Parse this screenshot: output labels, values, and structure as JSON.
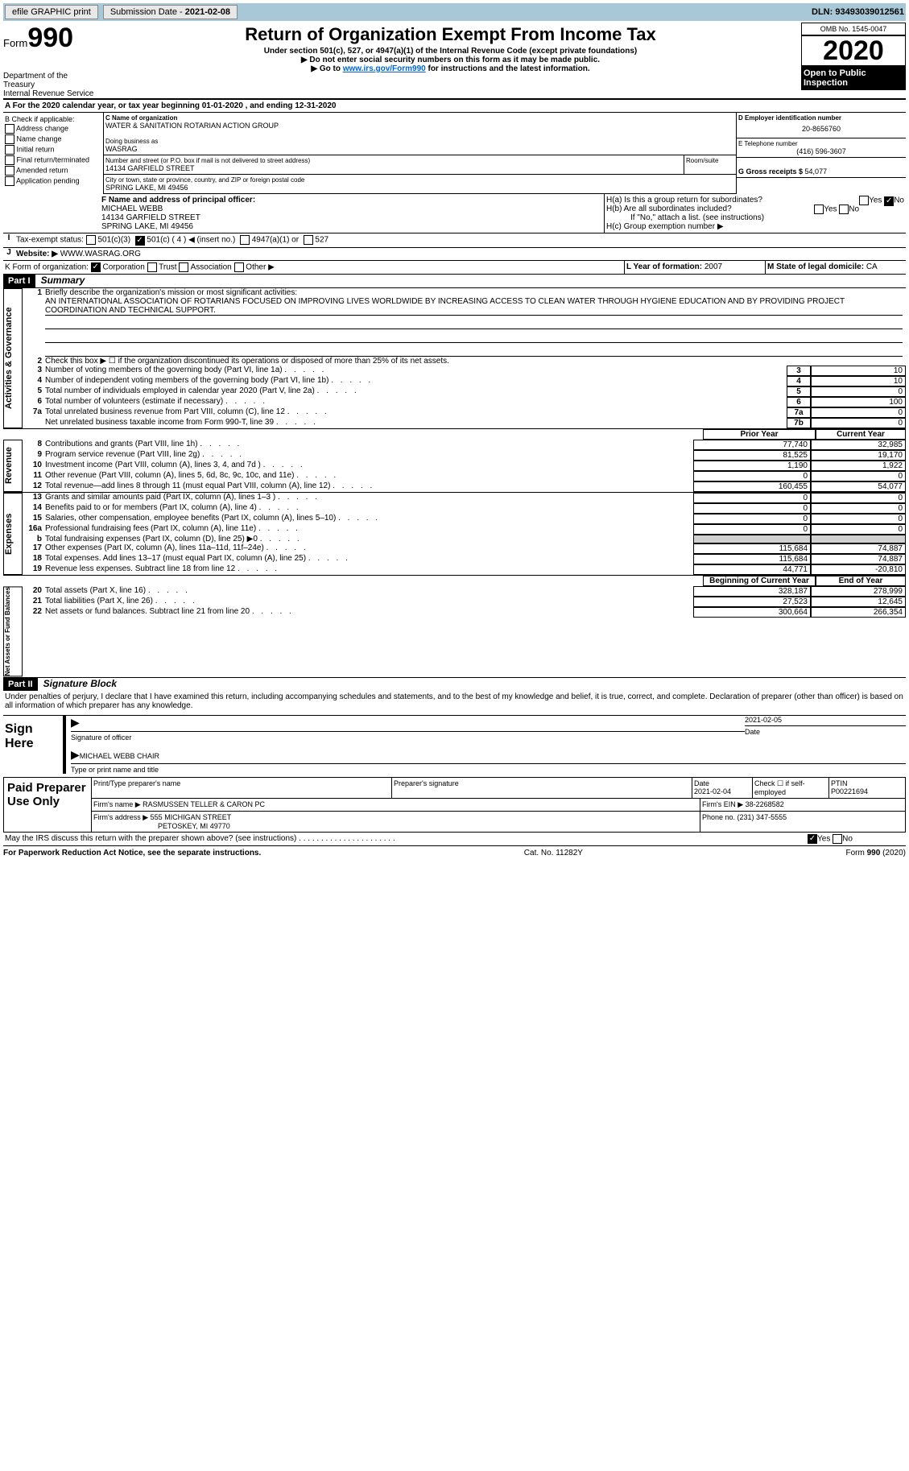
{
  "topbar": {
    "efile": "efile GRAPHIC print",
    "sub_label": "Submission Date - ",
    "sub_date": "2021-02-08",
    "dln_label": "DLN: ",
    "dln": "93493039012561"
  },
  "header": {
    "form": "Form",
    "num": "990",
    "dept": "Department of the Treasury\nInternal Revenue Service",
    "title": "Return of Organization Exempt From Income Tax",
    "sub1": "Under section 501(c), 527, or 4947(a)(1) of the Internal Revenue Code (except private foundations)",
    "sub2": "▶ Do not enter social security numbers on this form as it may be made public.",
    "sub3_a": "▶ Go to ",
    "sub3_link": "www.irs.gov/Form990",
    "sub3_b": " for instructions and the latest information.",
    "omb": "OMB No. 1545-0047",
    "year": "2020",
    "pub": "Open to Public Inspection"
  },
  "periodA": "A For the 2020 calendar year, or tax year beginning 01-01-2020    , and ending 12-31-2020",
  "B": {
    "hdr": "B Check if applicable:",
    "o1": "Address change",
    "o2": "Name change",
    "o3": "Initial return",
    "o4": "Final return/terminated",
    "o5": "Amended return",
    "o6": "Application pending"
  },
  "C": {
    "lbl": "C Name of organization",
    "name": "WATER & SANITATION ROTARIAN ACTION GROUP",
    "dba_lbl": "Doing business as",
    "dba": "WASRAG",
    "addr_lbl": "Number and street (or P.O. box if mail is not delivered to street address)",
    "room_lbl": "Room/suite",
    "addr": "14134 GARFIELD STREET",
    "city_lbl": "City or town, state or province, country, and ZIP or foreign postal code",
    "city": "SPRING LAKE, MI  49456"
  },
  "D": {
    "lbl": "D Employer identification number",
    "ein": "20-8656760"
  },
  "E": {
    "lbl": "E Telephone number",
    "tel": "(416) 596-3607"
  },
  "G": {
    "lbl": "G Gross receipts $ ",
    "val": "54,077"
  },
  "F": {
    "lbl": "F Name and address of principal officer:",
    "name": "MICHAEL WEBB",
    "addr1": "14134 GARFIELD STREET",
    "addr2": "SPRING LAKE, MI  49456"
  },
  "H": {
    "a": "H(a)  Is this a group return for subordinates?",
    "b": "H(b)  Are all subordinates included?",
    "note": "If \"No,\" attach a list. (see instructions)",
    "c": "H(c)  Group exemption number ▶",
    "yes": "Yes",
    "no": "No"
  },
  "I": {
    "lbl": "Tax-exempt status:",
    "o1": "501(c)(3)",
    "o2a": "501(c) ( 4 ) ◀ (insert no.)",
    "o3": "4947(a)(1) or",
    "o4": "527"
  },
  "J": {
    "lbl": "Website: ▶",
    "val": "WWW.WASRAG.ORG"
  },
  "K": {
    "lbl": "K Form of organization:",
    "o1": "Corporation",
    "o2": "Trust",
    "o3": "Association",
    "o4": "Other ▶"
  },
  "L": {
    "lbl": "L Year of formation: ",
    "val": "2007"
  },
  "M": {
    "lbl": "M State of legal domicile: ",
    "val": "CA"
  },
  "partI": {
    "hdr": "Part I",
    "title": "Summary",
    "l1": "Briefly describe the organization's mission or most significant activities:",
    "mission": "AN INTERNATIONAL ASSOCIATION OF ROTARIANS FOCUSED ON IMPROVING LIVES WORLDWIDE BY INCREASING ACCESS TO CLEAN WATER THROUGH HYGIENE EDUCATION AND BY PROVIDING PROJECT COORDINATION AND TECHNICAL SUPPORT.",
    "l2": "Check this box ▶ ☐  if the organization discontinued its operations or disposed of more than 25% of its net assets.",
    "gov": [
      {
        "n": "3",
        "t": "Number of voting members of the governing body (Part VI, line 1a)",
        "b": "3",
        "v": "10"
      },
      {
        "n": "4",
        "t": "Number of independent voting members of the governing body (Part VI, line 1b)",
        "b": "4",
        "v": "10"
      },
      {
        "n": "5",
        "t": "Total number of individuals employed in calendar year 2020 (Part V, line 2a)",
        "b": "5",
        "v": "0"
      },
      {
        "n": "6",
        "t": "Total number of volunteers (estimate if necessary)",
        "b": "6",
        "v": "100"
      },
      {
        "n": "7a",
        "t": "Total unrelated business revenue from Part VIII, column (C), line 12",
        "b": "7a",
        "v": "0"
      },
      {
        "n": "",
        "t": "Net unrelated business taxable income from Form 990-T, line 39",
        "b": "7b",
        "v": "0"
      }
    ],
    "col_prior": "Prior Year",
    "col_curr": "Current Year",
    "rev": [
      {
        "n": "8",
        "t": "Contributions and grants (Part VIII, line 1h)",
        "p": "77,740",
        "c": "32,985"
      },
      {
        "n": "9",
        "t": "Program service revenue (Part VIII, line 2g)",
        "p": "81,525",
        "c": "19,170"
      },
      {
        "n": "10",
        "t": "Investment income (Part VIII, column (A), lines 3, 4, and 7d )",
        "p": "1,190",
        "c": "1,922"
      },
      {
        "n": "11",
        "t": "Other revenue (Part VIII, column (A), lines 5, 6d, 8c, 9c, 10c, and 11e)",
        "p": "0",
        "c": "0"
      },
      {
        "n": "12",
        "t": "Total revenue—add lines 8 through 11 (must equal Part VIII, column (A), line 12)",
        "p": "160,455",
        "c": "54,077"
      }
    ],
    "exp": [
      {
        "n": "13",
        "t": "Grants and similar amounts paid (Part IX, column (A), lines 1–3 )",
        "p": "0",
        "c": "0"
      },
      {
        "n": "14",
        "t": "Benefits paid to or for members (Part IX, column (A), line 4)",
        "p": "0",
        "c": "0"
      },
      {
        "n": "15",
        "t": "Salaries, other compensation, employee benefits (Part IX, column (A), lines 5–10)",
        "p": "0",
        "c": "0"
      },
      {
        "n": "16a",
        "t": "Professional fundraising fees (Part IX, column (A), line 11e)",
        "p": "0",
        "c": "0"
      },
      {
        "n": "b",
        "t": "Total fundraising expenses (Part IX, column (D), line 25) ▶0",
        "p": "",
        "c": "",
        "shaded": true
      },
      {
        "n": "17",
        "t": "Other expenses (Part IX, column (A), lines 11a–11d, 11f–24e)",
        "p": "115,684",
        "c": "74,887"
      },
      {
        "n": "18",
        "t": "Total expenses. Add lines 13–17 (must equal Part IX, column (A), line 25)",
        "p": "115,684",
        "c": "74,887"
      },
      {
        "n": "19",
        "t": "Revenue less expenses. Subtract line 18 from line 12",
        "p": "44,771",
        "c": "-20,810"
      }
    ],
    "col_beg": "Beginning of Current Year",
    "col_end": "End of Year",
    "net": [
      {
        "n": "20",
        "t": "Total assets (Part X, line 16)",
        "p": "328,187",
        "c": "278,999"
      },
      {
        "n": "21",
        "t": "Total liabilities (Part X, line 26)",
        "p": "27,523",
        "c": "12,645"
      },
      {
        "n": "22",
        "t": "Net assets or fund balances. Subtract line 21 from line 20",
        "p": "300,664",
        "c": "266,354"
      }
    ],
    "side_gov": "Activities & Governance",
    "side_rev": "Revenue",
    "side_exp": "Expenses",
    "side_net": "Net Assets or Fund Balances"
  },
  "partII": {
    "hdr": "Part II",
    "title": "Signature Block",
    "decl": "Under penalties of perjury, I declare that I have examined this return, including accompanying schedules and statements, and to the best of my knowledge and belief, it is true, correct, and complete. Declaration of preparer (other than officer) is based on all information of which preparer has any knowledge."
  },
  "sign": {
    "hdr": "Sign Here",
    "sig_lbl": "Signature of officer",
    "date_lbl": "Date",
    "date": "2021-02-05",
    "name": "MICHAEL WEBB  CHAIR",
    "name_lbl": "Type or print name and title"
  },
  "paid": {
    "hdr": "Paid Preparer Use Only",
    "c1": "Print/Type preparer's name",
    "c2": "Preparer's signature",
    "c3": "Date",
    "c3v": "2021-02-04",
    "c4": "Check ☐  if self-employed",
    "c5": "PTIN",
    "c5v": "P00221694",
    "firm_lbl": "Firm's name   ▶",
    "firm": "RASMUSSEN TELLER & CARON PC",
    "ein_lbl": "Firm's EIN ▶",
    "ein": "38-2268582",
    "addr_lbl": "Firm's address ▶",
    "addr1": "555 MICHIGAN STREET",
    "addr2": "PETOSKEY, MI  49770",
    "ph_lbl": "Phone no. ",
    "ph": "(231) 347-5555"
  },
  "discuss": "May the IRS discuss this return with the preparer shown above? (see instructions)",
  "footer": {
    "l": "For Paperwork Reduction Act Notice, see the separate instructions.",
    "c": "Cat. No. 11282Y",
    "r": "Form 990 (2020)"
  }
}
